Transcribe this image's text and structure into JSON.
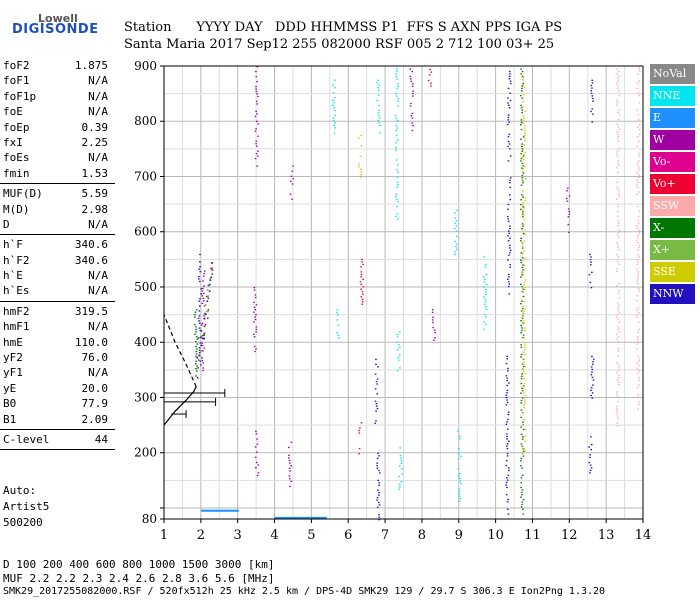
{
  "logo": {
    "line1": "Lowell",
    "line2": "DIGISONDE"
  },
  "header": {
    "labels": "Station      YYYY DAY   DDD HHMMSS P1  FFS S AXN PPS IGA PS",
    "values": "Santa Maria 2017 Sep12 255 082000 RSF 005 2 712 100 03+ 25"
  },
  "params_group1": [
    {
      "label": "foF2",
      "value": "1.875"
    },
    {
      "label": "foF1",
      "value": "N/A"
    },
    {
      "label": "foF1p",
      "value": "N/A"
    },
    {
      "label": "foE",
      "value": "N/A"
    },
    {
      "label": "foEp",
      "value": "0.39"
    },
    {
      "label": "fxI",
      "value": "2.25"
    },
    {
      "label": "foEs",
      "value": "N/A"
    },
    {
      "label": "fmin",
      "value": "1.53"
    }
  ],
  "params_group2": [
    {
      "label": "MUF(D)",
      "value": "5.59"
    },
    {
      "label": "M(D)",
      "value": "2.98"
    },
    {
      "label": "D",
      "value": "N/A"
    }
  ],
  "params_group3": [
    {
      "label": "h`F",
      "value": "340.6"
    },
    {
      "label": "h`F2",
      "value": "340.6"
    },
    {
      "label": "h`E",
      "value": "N/A"
    },
    {
      "label": "h`Es",
      "value": "N/A"
    }
  ],
  "params_group4": [
    {
      "label": "hmF2",
      "value": "319.5"
    },
    {
      "label": "hmF1",
      "value": "N/A"
    },
    {
      "label": "hmE",
      "value": "110.0"
    },
    {
      "label": "yF2",
      "value": "76.0"
    },
    {
      "label": "yF1",
      "value": "N/A"
    },
    {
      "label": "yE",
      "value": "20.0"
    },
    {
      "label": "B0",
      "value": "77.9"
    },
    {
      "label": "B1",
      "value": "2.09"
    }
  ],
  "params_group5": [
    {
      "label": "C-level",
      "value": "44"
    }
  ],
  "auto": {
    "line1": "Auto:",
    "line2": "Artist5",
    "line3": "500200"
  },
  "legend": [
    {
      "label": "NoVal",
      "color": "#888888"
    },
    {
      "label": "NNE",
      "color": "#00e5ee"
    },
    {
      "label": "E",
      "color": "#1e90ff"
    },
    {
      "label": "W",
      "color": "#a000a0"
    },
    {
      "label": "Vo-",
      "color": "#e00090"
    },
    {
      "label": "Vo+",
      "color": "#ee0030"
    },
    {
      "label": "SSW",
      "color": "#ffaaaa"
    },
    {
      "label": "X-",
      "color": "#007700"
    },
    {
      "label": "X+",
      "color": "#77bb44"
    },
    {
      "label": "SSE",
      "color": "#cccc00"
    },
    {
      "label": "NNW",
      "color": "#2010c0"
    }
  ],
  "footer_table": {
    "row1": "D     100  200  400  600  800 1000 1500 3000 [km]",
    "row2": "MUF   2.2  2.2  2.3  2.4  2.6  2.8  3.6  5.6 [MHz]"
  },
  "footer": "SMK29_2017255082000.RSF / 520fx512h 25 kHz 2.5 km / DPS-4D SMK29 129 / 29.7 S 306.3 E Ion2Png 1.3.20",
  "chart_data": {
    "type": "scatter",
    "xlabel": "",
    "ylabel": "",
    "xlim": [
      1,
      14
    ],
    "ylim": [
      80,
      900
    ],
    "xticks": [
      1,
      2,
      3,
      4,
      5,
      6,
      7,
      8,
      9,
      10,
      11,
      12,
      13,
      14
    ],
    "yticks": [
      80,
      100,
      200,
      300,
      400,
      500,
      600,
      700,
      800,
      900
    ],
    "ytick_labels": [
      "80",
      "",
      "200",
      "300",
      "400",
      "500",
      "600",
      "700",
      "800",
      "900"
    ],
    "grid": true,
    "echo_traces": [
      {
        "x": 1.95,
        "y0": 360,
        "y1": 560,
        "color": "#2010c0"
      },
      {
        "x": 2.05,
        "y0": 350,
        "y1": 530,
        "color": "#a000a0"
      },
      {
        "x": 1.85,
        "y0": 340,
        "y1": 460,
        "color": "#007700"
      },
      {
        "x": 3.5,
        "y0": 720,
        "y1": 900,
        "color": "#a000a0"
      },
      {
        "x": 3.45,
        "y0": 380,
        "y1": 500,
        "color": "#a000a0"
      },
      {
        "x": 3.5,
        "y0": 160,
        "y1": 240,
        "color": "#a000a0"
      },
      {
        "x": 4.45,
        "y0": 660,
        "y1": 720,
        "color": "#a000a0"
      },
      {
        "x": 4.4,
        "y0": 140,
        "y1": 220,
        "color": "#a000a0"
      },
      {
        "x": 5.6,
        "y0": 780,
        "y1": 880,
        "color": "#00e5ee"
      },
      {
        "x": 5.7,
        "y0": 400,
        "y1": 460,
        "color": "#00e5ee"
      },
      {
        "x": 6.3,
        "y0": 700,
        "y1": 780,
        "color": "#ffaa00"
      },
      {
        "x": 6.35,
        "y0": 470,
        "y1": 560,
        "color": "#ee0030"
      },
      {
        "x": 6.3,
        "y0": 190,
        "y1": 260,
        "color": "#ee0030"
      },
      {
        "x": 6.8,
        "y0": 780,
        "y1": 880,
        "color": "#00e5ee"
      },
      {
        "x": 6.75,
        "y0": 250,
        "y1": 370,
        "color": "#2010c0"
      },
      {
        "x": 6.8,
        "y0": 80,
        "y1": 200,
        "color": "#2010c0"
      },
      {
        "x": 7.3,
        "y0": 620,
        "y1": 900,
        "color": "#00e5ee"
      },
      {
        "x": 7.35,
        "y0": 350,
        "y1": 420,
        "color": "#00e5ee"
      },
      {
        "x": 7.4,
        "y0": 130,
        "y1": 210,
        "color": "#00e5ee"
      },
      {
        "x": 7.7,
        "y0": 780,
        "y1": 900,
        "color": "#a000a0"
      },
      {
        "x": 8.2,
        "y0": 860,
        "y1": 900,
        "color": "#ee0030"
      },
      {
        "x": 8.3,
        "y0": 400,
        "y1": 460,
        "color": "#a000a0"
      },
      {
        "x": 8.9,
        "y0": 560,
        "y1": 640,
        "color": "#00e5ee"
      },
      {
        "x": 9.0,
        "y0": 100,
        "y1": 240,
        "color": "#00e5ee"
      },
      {
        "x": 9.7,
        "y0": 420,
        "y1": 560,
        "color": "#00e5ee"
      },
      {
        "x": 10.35,
        "y0": 480,
        "y1": 900,
        "color": "#2010c0"
      },
      {
        "x": 10.3,
        "y0": 90,
        "y1": 380,
        "color": "#2010c0"
      },
      {
        "x": 10.7,
        "y0": 90,
        "y1": 900,
        "color": "#007700"
      },
      {
        "x": 10.75,
        "y0": 200,
        "y1": 880,
        "color": "#cccc00"
      },
      {
        "x": 11.95,
        "y0": 600,
        "y1": 680,
        "color": "#a000a0"
      },
      {
        "x": 12.55,
        "y0": 500,
        "y1": 560,
        "color": "#2010c0"
      },
      {
        "x": 12.6,
        "y0": 800,
        "y1": 880,
        "color": "#2010c0"
      },
      {
        "x": 12.6,
        "y0": 300,
        "y1": 380,
        "color": "#2010c0"
      },
      {
        "x": 12.55,
        "y0": 160,
        "y1": 230,
        "color": "#2010c0"
      },
      {
        "x": 13.3,
        "y0": 250,
        "y1": 900,
        "color": "#ffaaaa"
      },
      {
        "x": 13.85,
        "y0": 280,
        "y1": 900,
        "color": "#ffaaaa"
      }
    ],
    "es_bands": [
      {
        "x0": 2.0,
        "x1": 3.0,
        "y": 95,
        "color": "#1e90ff"
      },
      {
        "x0": 4.0,
        "x1": 5.4,
        "y": 82,
        "color": "#1e90ff"
      }
    ],
    "profile": [
      {
        "f": 1.0,
        "h": 250
      },
      {
        "f": 1.3,
        "h": 275
      },
      {
        "f": 1.6,
        "h": 295
      },
      {
        "f": 1.8,
        "h": 310
      },
      {
        "f": 1.875,
        "h": 319.5
      }
    ],
    "topside": [
      {
        "f": 1.875,
        "h": 319.5
      },
      {
        "f": 1.6,
        "h": 360
      },
      {
        "f": 1.3,
        "h": 400
      },
      {
        "f": 1.0,
        "h": 450
      }
    ],
    "error_bars": [
      {
        "h": 308,
        "x0": 1.0,
        "x1": 2.65
      },
      {
        "h": 292,
        "x0": 1.0,
        "x1": 2.4
      },
      {
        "h": 270,
        "x0": 1.2,
        "x1": 1.6
      }
    ]
  }
}
